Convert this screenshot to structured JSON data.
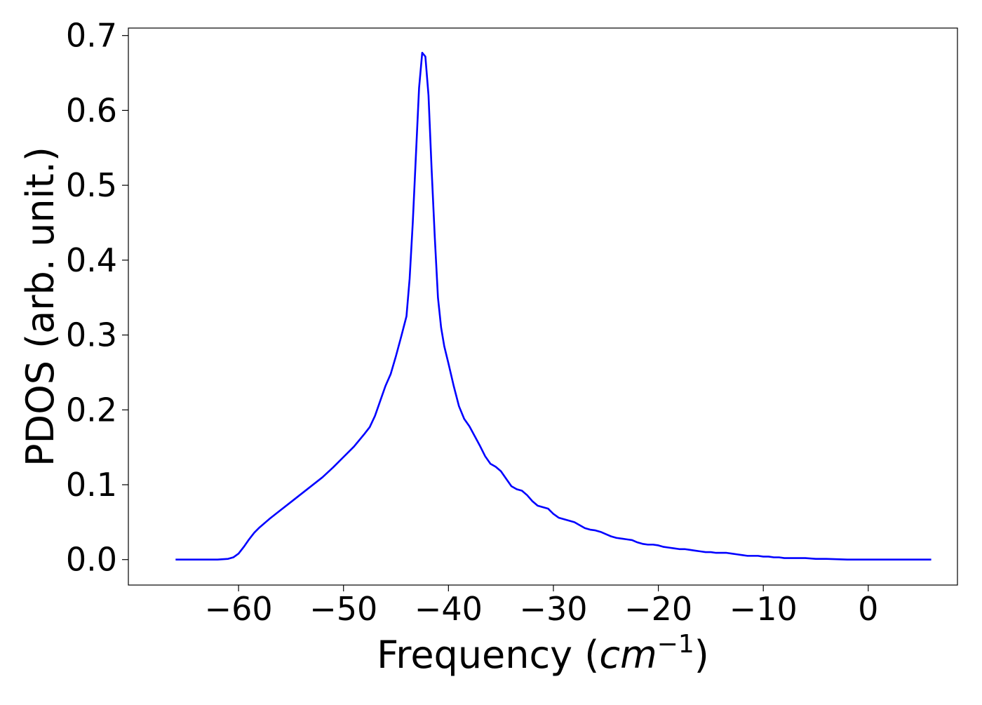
{
  "chart_data": {
    "type": "line",
    "title": "",
    "xlabel": {
      "main": "Frequency (",
      "italic": "cm",
      "superscript": "−1",
      "close": ")"
    },
    "ylabel": "PDOS (arb. unit.)",
    "xlim": [
      -70.5,
      8.5
    ],
    "ylim": [
      -0.034,
      0.71
    ],
    "x_ticks": [
      -60,
      -50,
      -40,
      -30,
      -20,
      -10,
      0
    ],
    "x_tick_labels": [
      "−60",
      "−50",
      "−40",
      "−30",
      "−20",
      "−10",
      "0"
    ],
    "y_ticks": [
      0.0,
      0.1,
      0.2,
      0.3,
      0.4,
      0.5,
      0.6,
      0.7
    ],
    "y_tick_labels": [
      "0.0",
      "0.1",
      "0.2",
      "0.3",
      "0.4",
      "0.5",
      "0.6",
      "0.7"
    ],
    "grid": false,
    "legend": "none",
    "series": [
      {
        "color": "#0000ff",
        "x": [
          -66,
          -62,
          -61,
          -60.5,
          -60,
          -59.5,
          -59,
          -58.5,
          -58,
          -57,
          -56,
          -55,
          -54,
          -53,
          -52,
          -51,
          -50,
          -49,
          -48,
          -47.5,
          -47,
          -46.5,
          -46,
          -45.5,
          -45,
          -44.5,
          -44,
          -43.7,
          -43.4,
          -43.1,
          -42.8,
          -42.5,
          -42.2,
          -41.9,
          -41.6,
          -41.3,
          -41,
          -40.7,
          -40.4,
          -40,
          -39.5,
          -39,
          -38.5,
          -38,
          -37.5,
          -37,
          -36.5,
          -36,
          -35.5,
          -35,
          -34.5,
          -34,
          -33.5,
          -33,
          -32.5,
          -32,
          -31.5,
          -31,
          -30.5,
          -30,
          -29.5,
          -29,
          -28.5,
          -28,
          -27.5,
          -27,
          -26.5,
          -26,
          -25.5,
          -25,
          -24.5,
          -24,
          -23.5,
          -23,
          -22.5,
          -22,
          -21.5,
          -21,
          -20.5,
          -20,
          -19.5,
          -19,
          -18.5,
          -18,
          -17.5,
          -17,
          -16.5,
          -16,
          -15.5,
          -15,
          -14.5,
          -14,
          -13.5,
          -13,
          -12.5,
          -12,
          -11.5,
          -11,
          -10.5,
          -10,
          -9.5,
          -9,
          -8.5,
          -8,
          -7.5,
          -7,
          -6.5,
          -6,
          -5,
          -4,
          -3,
          -2,
          -1,
          0,
          2,
          4,
          6
        ],
        "y": [
          0.0,
          0.0,
          0.001,
          0.003,
          0.008,
          0.017,
          0.027,
          0.036,
          0.043,
          0.055,
          0.066,
          0.077,
          0.088,
          0.099,
          0.11,
          0.123,
          0.137,
          0.151,
          0.168,
          0.177,
          0.192,
          0.212,
          0.232,
          0.248,
          0.272,
          0.298,
          0.325,
          0.375,
          0.45,
          0.54,
          0.63,
          0.677,
          0.672,
          0.62,
          0.52,
          0.43,
          0.35,
          0.31,
          0.285,
          0.262,
          0.232,
          0.205,
          0.188,
          0.178,
          0.165,
          0.152,
          0.138,
          0.128,
          0.124,
          0.118,
          0.108,
          0.098,
          0.094,
          0.092,
          0.086,
          0.078,
          0.072,
          0.07,
          0.068,
          0.061,
          0.056,
          0.054,
          0.052,
          0.05,
          0.046,
          0.042,
          0.04,
          0.039,
          0.037,
          0.034,
          0.031,
          0.029,
          0.028,
          0.027,
          0.026,
          0.023,
          0.021,
          0.02,
          0.02,
          0.019,
          0.017,
          0.016,
          0.015,
          0.014,
          0.014,
          0.013,
          0.012,
          0.011,
          0.01,
          0.01,
          0.009,
          0.009,
          0.009,
          0.008,
          0.007,
          0.006,
          0.005,
          0.005,
          0.005,
          0.004,
          0.004,
          0.003,
          0.003,
          0.002,
          0.002,
          0.002,
          0.002,
          0.002,
          0.001,
          0.001,
          0.0005,
          0.0,
          0.0,
          0.0,
          0.0,
          0.0,
          0.0
        ]
      }
    ]
  }
}
